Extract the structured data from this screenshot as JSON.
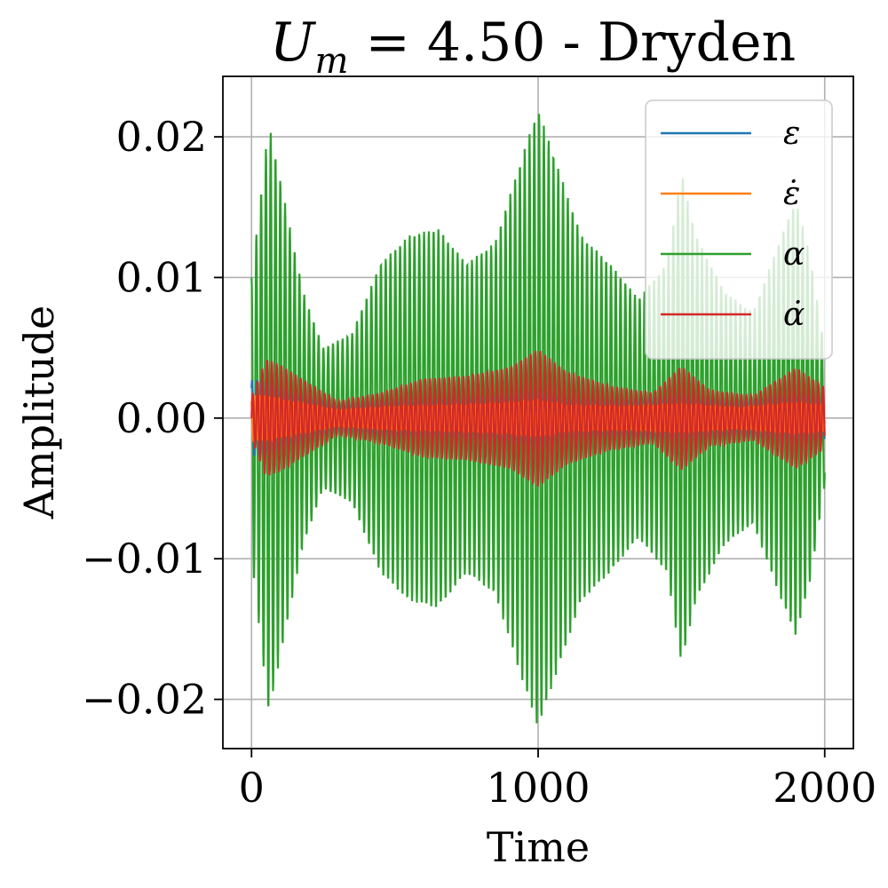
{
  "chart_data": {
    "type": "line",
    "title": "U_m = 4.50 - Dryden",
    "title_parts": {
      "var": "U",
      "sub": "m",
      "rest": " = 4.50 - Dryden"
    },
    "xlabel": "Time",
    "ylabel": "Amplitude",
    "xlim": [
      -100,
      2100
    ],
    "ylim": [
      -0.0235,
      0.0243
    ],
    "x_ticks": [
      0,
      1000,
      2000
    ],
    "x_tick_labels": [
      "0",
      "1000",
      "2000"
    ],
    "y_ticks": [
      -0.02,
      -0.01,
      0.0,
      0.01,
      0.02
    ],
    "y_tick_labels": [
      "−0.02",
      "−0.01",
      "0.00",
      "0.01",
      "0.02"
    ],
    "grid": true,
    "legend_position": "top-right",
    "samples": 2001,
    "series": [
      {
        "name": "ε",
        "color": "#1f77b4",
        "freq_cycles_per_unit": 0.0598,
        "phase": 0.9,
        "scale": 0.0027,
        "envelope_t": [
          0,
          50,
          150,
          300,
          500,
          700,
          900,
          1000,
          1100,
          1300,
          1500,
          1700,
          1900,
          2000
        ],
        "envelope_amp": [
          1.0,
          1.0,
          0.7,
          0.35,
          0.5,
          0.55,
          0.65,
          0.8,
          0.55,
          0.5,
          0.6,
          0.45,
          0.65,
          0.55
        ]
      },
      {
        "name": "ε̇",
        "color": "#ff7f0e",
        "freq_cycles_per_unit": 0.0598,
        "phase": 2.3,
        "scale": 0.0016,
        "envelope_t": [
          0,
          50,
          150,
          300,
          500,
          700,
          900,
          1000,
          1100,
          1300,
          1500,
          1700,
          1900,
          2000
        ],
        "envelope_amp": [
          1.0,
          1.0,
          0.7,
          0.35,
          0.5,
          0.55,
          0.65,
          0.8,
          0.55,
          0.5,
          0.6,
          0.45,
          0.65,
          0.55
        ]
      },
      {
        "name": "α",
        "color": "#2ca02c",
        "freq_cycles_per_unit": 0.0598,
        "phase": 1.57,
        "scale": 1.0,
        "envelope_t": [
          0,
          60,
          120,
          180,
          250,
          350,
          450,
          550,
          650,
          750,
          850,
          950,
          1000,
          1050,
          1150,
          1250,
          1350,
          1450,
          1500,
          1550,
          1650,
          1750,
          1850,
          1900,
          1950,
          2000
        ],
        "envelope_amp": [
          0.01,
          0.021,
          0.015,
          0.009,
          0.005,
          0.006,
          0.011,
          0.013,
          0.0135,
          0.011,
          0.0125,
          0.019,
          0.022,
          0.019,
          0.013,
          0.011,
          0.0085,
          0.011,
          0.0175,
          0.013,
          0.009,
          0.0075,
          0.013,
          0.0155,
          0.0115,
          0.0048
        ]
      },
      {
        "name": "α̇",
        "color": "#d62728",
        "freq_cycles_per_unit": 0.0598,
        "phase": 0.0,
        "scale": 1.0,
        "envelope_t": [
          0,
          50,
          100,
          200,
          300,
          450,
          600,
          750,
          900,
          1000,
          1100,
          1250,
          1400,
          1500,
          1600,
          1750,
          1900,
          2000
        ],
        "envelope_amp": [
          0.0015,
          0.0042,
          0.0038,
          0.0025,
          0.0012,
          0.0018,
          0.0028,
          0.003,
          0.0036,
          0.0049,
          0.0033,
          0.0023,
          0.0018,
          0.0037,
          0.002,
          0.0016,
          0.0036,
          0.0022
        ]
      }
    ]
  }
}
